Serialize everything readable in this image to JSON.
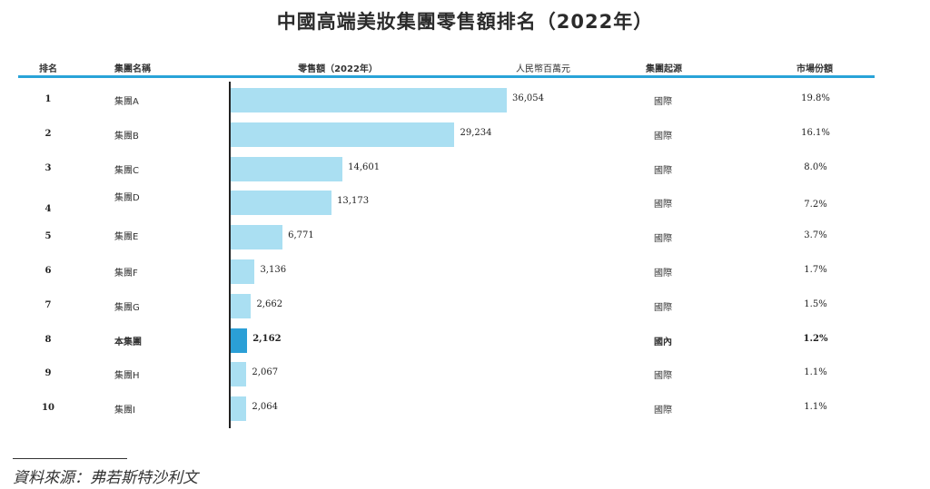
{
  "title": "中國高端美妝集團零售額排名（2022年）",
  "headers": {
    "rank": "排名",
    "group_name": "集團名稱",
    "retail_sales": "零售額（2022年）",
    "unit": "人民幣百萬元",
    "origin": "集團起源",
    "share": "市場份額"
  },
  "source": "資料來源：弗若斯特沙利文",
  "chart_data": {
    "type": "bar",
    "orientation": "horizontal",
    "title": "中國高端美妝集團零售額排名（2022年）",
    "xlabel": "零售額（2022年）",
    "unit": "人民幣百萬元",
    "xlim": [
      0,
      36054
    ],
    "highlight_category": "本集團",
    "colors": {
      "bar": "#aadff2",
      "highlight": "#2b9fd6",
      "rule": "#29a3d8"
    },
    "rows": [
      {
        "rank": "1",
        "name": "集團A",
        "value": 36054,
        "value_label": "36,054",
        "origin": "國際",
        "share": "19.8%"
      },
      {
        "rank": "2",
        "name": "集團B",
        "value": 29234,
        "value_label": "29,234",
        "origin": "國際",
        "share": "16.1%"
      },
      {
        "rank": "3",
        "name": "集團C",
        "value": 14601,
        "value_label": "14,601",
        "origin": "國際",
        "share": "8.0%"
      },
      {
        "rank": "4",
        "name": "集團D",
        "value": 13173,
        "value_label": "13,173",
        "origin": "國際",
        "share": "7.2%"
      },
      {
        "rank": "5",
        "name": "集團E",
        "value": 6771,
        "value_label": "6,771",
        "origin": "國際",
        "share": "3.7%"
      },
      {
        "rank": "6",
        "name": "集團F",
        "value": 3136,
        "value_label": "3,136",
        "origin": "國際",
        "share": "1.7%"
      },
      {
        "rank": "7",
        "name": "集團G",
        "value": 2662,
        "value_label": "2,662",
        "origin": "國際",
        "share": "1.5%"
      },
      {
        "rank": "8",
        "name": "本集團",
        "value": 2162,
        "value_label": "2,162",
        "origin": "國內",
        "share": "1.2%",
        "highlight": true
      },
      {
        "rank": "9",
        "name": "集團H",
        "value": 2067,
        "value_label": "2,067",
        "origin": "國際",
        "share": "1.1%"
      },
      {
        "rank": "10",
        "name": "集團I",
        "value": 2064,
        "value_label": "2,064",
        "origin": "國際",
        "share": "1.1%"
      }
    ]
  }
}
